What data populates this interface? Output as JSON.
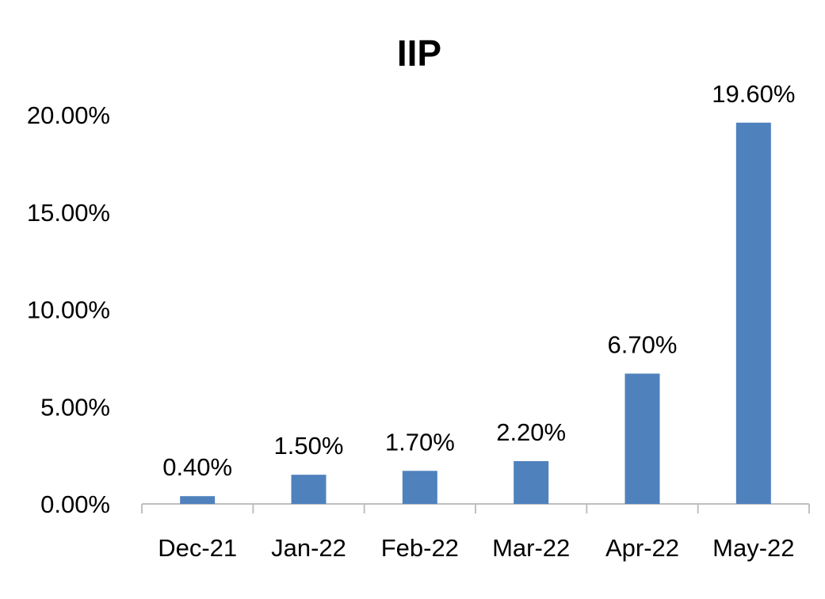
{
  "chart_data": {
    "type": "bar",
    "title": "IIP",
    "xlabel": "",
    "ylabel": "",
    "categories": [
      "Dec-21",
      "Jan-22",
      "Feb-22",
      "Mar-22",
      "Apr-22",
      "May-22"
    ],
    "values": [
      0.4,
      1.5,
      1.7,
      2.2,
      6.7,
      19.6
    ],
    "data_labels": [
      "0.40%",
      "1.50%",
      "1.70%",
      "2.20%",
      "6.70%",
      "19.60%"
    ],
    "ylim": [
      0,
      20
    ],
    "yticks": [
      0,
      5,
      10,
      15,
      20
    ],
    "ytick_labels": [
      "0.00%",
      "5.00%",
      "10.00%",
      "15.00%",
      "20.00%"
    ],
    "grid": false,
    "legend": "none",
    "bar_color": "#4F81BD"
  }
}
